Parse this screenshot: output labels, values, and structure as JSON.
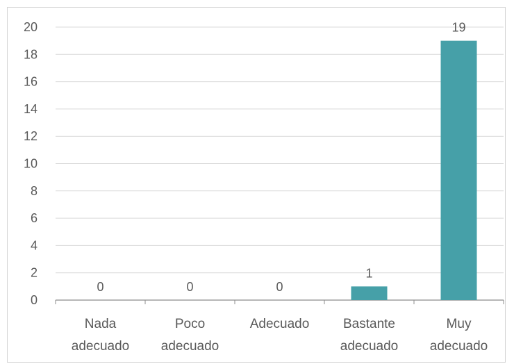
{
  "chart_data": {
    "type": "bar",
    "categories": [
      [
        "Nada",
        "adecuado"
      ],
      [
        "Poco",
        "adecuado"
      ],
      [
        "Adecuado"
      ],
      [
        "Bastante",
        "adecuado"
      ],
      [
        "Muy",
        "adecuado"
      ]
    ],
    "values": [
      0,
      0,
      0,
      1,
      19
    ],
    "ylim": [
      0,
      20
    ],
    "yticks": [
      0,
      2,
      4,
      6,
      8,
      10,
      12,
      14,
      16,
      18,
      20
    ],
    "bar_color": "#46a0a8",
    "grid": true,
    "legend": "none",
    "data_labels": true
  }
}
